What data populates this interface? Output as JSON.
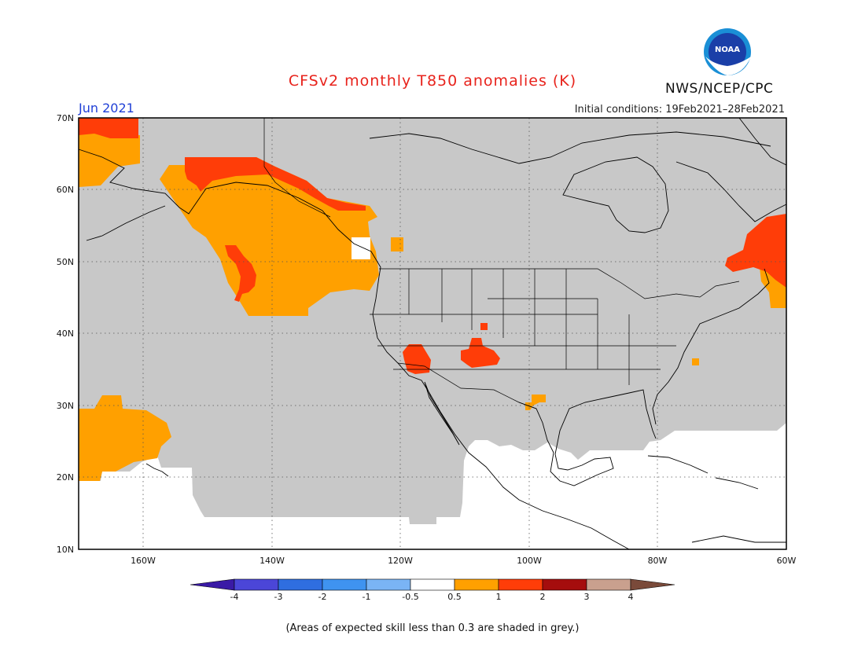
{
  "header": {
    "title": "CFSv2 monthly T850 anomalies (K)",
    "period": "Jun 2021",
    "initial_conditions": "Initial conditions: 19Feb2021–28Feb2021",
    "agency": "NWS/NCEP/CPC"
  },
  "logo": {
    "text": "NOAA"
  },
  "axes": {
    "lat_labels": [
      "70N",
      "60N",
      "50N",
      "40N",
      "30N",
      "20N",
      "10N"
    ],
    "lon_labels": [
      "160W",
      "140W",
      "120W",
      "100W",
      "80W",
      "60W"
    ]
  },
  "colorbar": {
    "labels": [
      "-4",
      "-3",
      "-2",
      "-1",
      "-0.5",
      "0.5",
      "1",
      "2",
      "3",
      "4"
    ],
    "colors": [
      "#3a1aa6",
      "#4b46d8",
      "#2f6ee0",
      "#3f93f0",
      "#7ab4f5",
      "#ffffff",
      "#ffa000",
      "#ff3d08",
      "#a50d0d",
      "#c9a08e",
      "#7a4a3a"
    ]
  },
  "footnote": "(Areas of expected skill less than 0.3 are shaded in grey.)",
  "colors": {
    "grey_mask": "#c8c8c8",
    "anomaly_0p5_1": "#ffa000",
    "anomaly_1_2": "#ff3d08",
    "title": "#e8231c",
    "period": "#1f3fd6"
  }
}
